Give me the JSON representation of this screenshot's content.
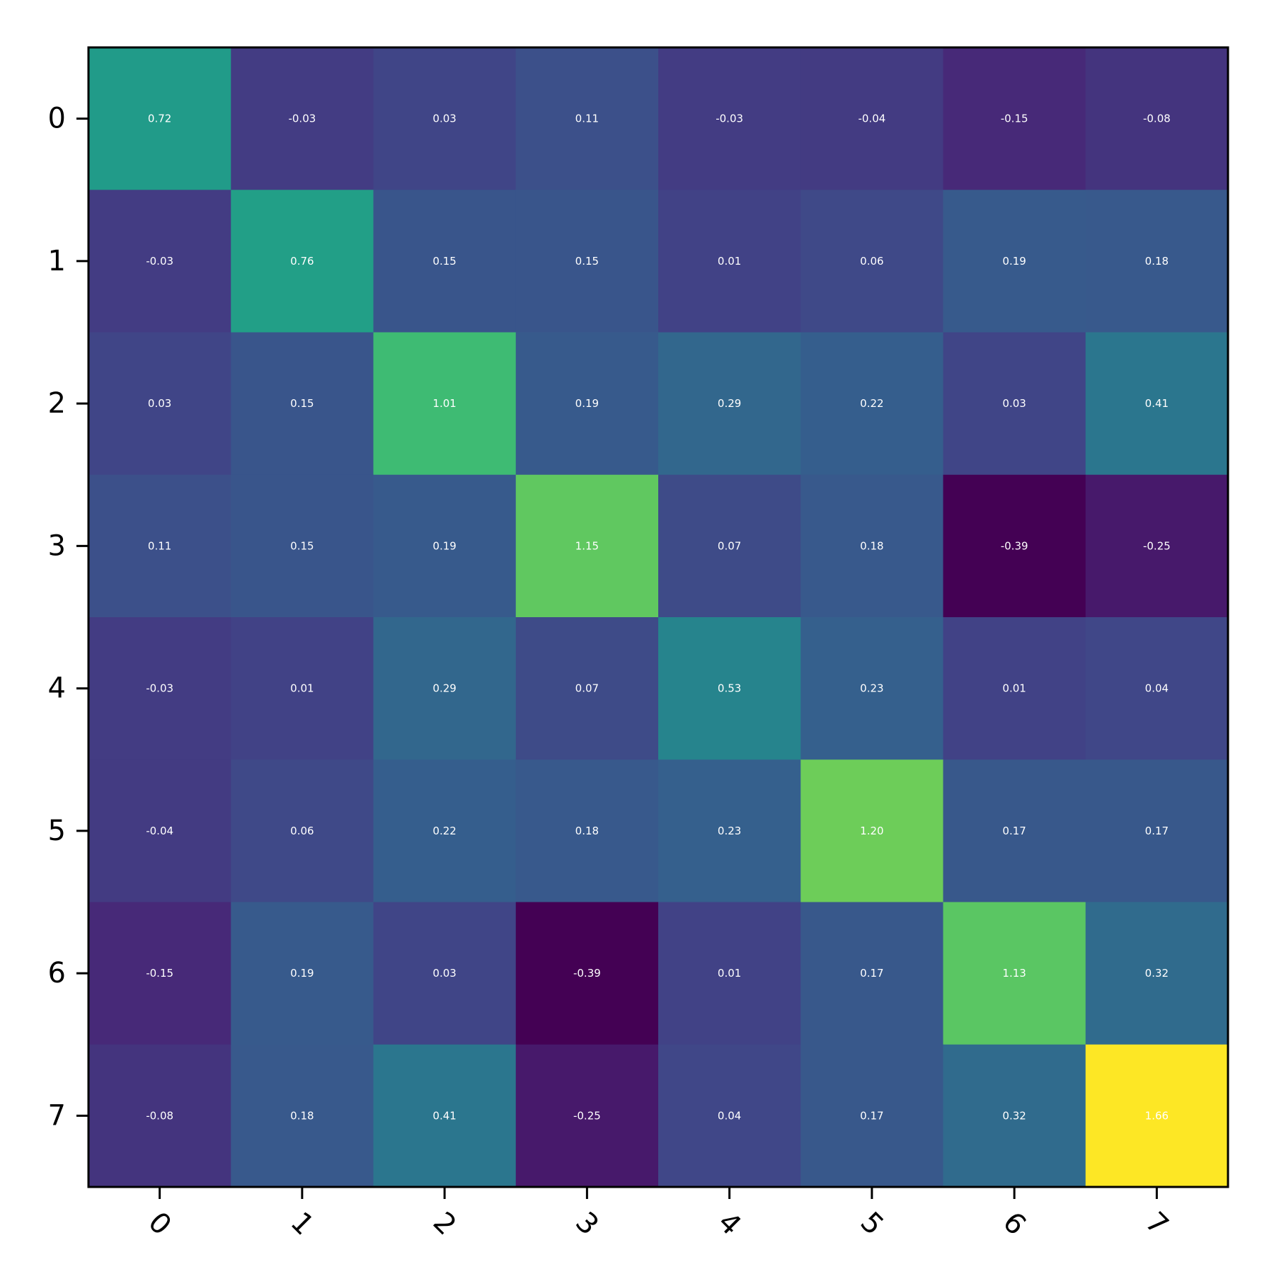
{
  "chart_data": {
    "type": "heatmap",
    "colormap": "viridis",
    "vmin": -0.39,
    "vmax": 1.66,
    "x_tick_labels": [
      "0",
      "1",
      "2",
      "3",
      "4",
      "5",
      "6",
      "7"
    ],
    "y_tick_labels": [
      "0",
      "1",
      "2",
      "3",
      "4",
      "5",
      "6",
      "7"
    ],
    "x_tick_rotation_deg": 45,
    "values": [
      [
        0.72,
        -0.03,
        0.03,
        0.11,
        -0.03,
        -0.04,
        -0.15,
        -0.08
      ],
      [
        -0.03,
        0.76,
        0.15,
        0.15,
        0.01,
        0.06,
        0.19,
        0.18
      ],
      [
        0.03,
        0.15,
        1.01,
        0.19,
        0.29,
        0.22,
        0.03,
        0.41
      ],
      [
        0.11,
        0.15,
        0.19,
        1.15,
        0.07,
        0.18,
        -0.39,
        -0.25
      ],
      [
        -0.03,
        0.01,
        0.29,
        0.07,
        0.53,
        0.23,
        0.01,
        0.04
      ],
      [
        -0.04,
        0.06,
        0.22,
        0.18,
        0.23,
        1.2,
        0.17,
        0.17
      ],
      [
        -0.15,
        0.19,
        0.03,
        -0.39,
        0.01,
        0.17,
        1.13,
        0.32
      ],
      [
        -0.08,
        0.18,
        0.41,
        -0.25,
        0.04,
        0.17,
        0.32,
        1.66
      ]
    ],
    "cell_labels": [
      [
        "0.72",
        "-0.03",
        "0.03",
        "0.11",
        "-0.03",
        "-0.04",
        "-0.15",
        "-0.08"
      ],
      [
        "-0.03",
        "0.76",
        "0.15",
        "0.15",
        "0.01",
        "0.06",
        "0.19",
        "0.18"
      ],
      [
        "0.03",
        "0.15",
        "1.01",
        "0.19",
        "0.29",
        "0.22",
        "0.03",
        "0.41"
      ],
      [
        "0.11",
        "0.15",
        "0.19",
        "1.15",
        "0.07",
        "0.18",
        "-0.39",
        "-0.25"
      ],
      [
        "-0.03",
        "0.01",
        "0.29",
        "0.07",
        "0.53",
        "0.23",
        "0.01",
        "0.04"
      ],
      [
        "-0.04",
        "0.06",
        "0.22",
        "0.18",
        "0.23",
        "1.20",
        "0.17",
        "0.17"
      ],
      [
        "-0.15",
        "0.19",
        "0.03",
        "-0.39",
        "0.01",
        "0.17",
        "1.13",
        "0.32"
      ],
      [
        "-0.08",
        "0.18",
        "0.41",
        "-0.25",
        "0.04",
        "0.17",
        "0.32",
        "1.66"
      ]
    ],
    "cell_label_color": "#ffffff",
    "grid": false,
    "legend": "none"
  }
}
